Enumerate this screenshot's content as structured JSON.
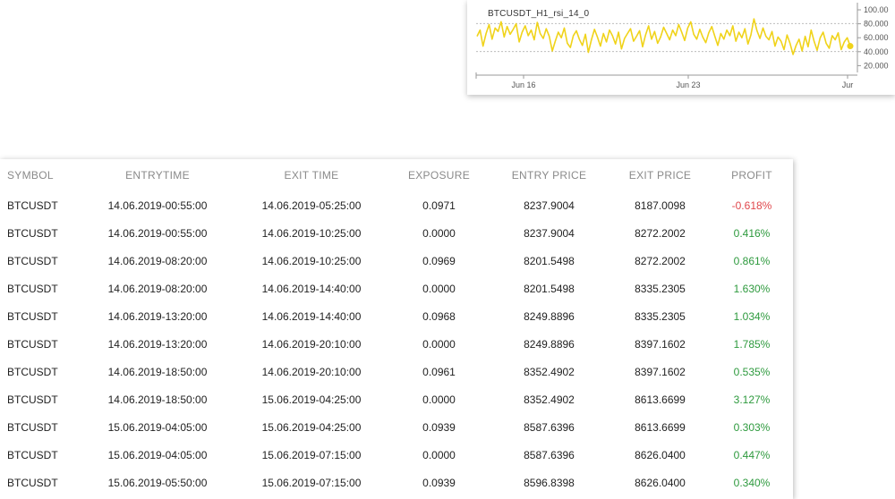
{
  "chart": {
    "title": "BTCUSDT_H1_rsi_14_0",
    "y_ticks": [
      "100.00",
      "80.000",
      "60.000",
      "40.000",
      "20.000"
    ],
    "x_ticks": [
      "Jun 16",
      "Jun 23",
      "Jur"
    ],
    "line_color": "#f0d31a",
    "chart_data": {
      "type": "line",
      "series": [
        {
          "values": [
            62,
            71,
            48,
            66,
            79,
            58,
            74,
            69,
            83,
            61,
            76,
            65,
            72,
            80,
            54,
            68,
            77,
            63,
            71,
            57,
            82,
            66,
            59,
            73,
            62,
            41,
            55,
            68,
            60,
            74,
            52,
            46,
            63,
            70,
            58,
            49,
            65,
            39,
            57,
            72,
            61,
            48,
            66,
            54,
            71,
            63,
            51,
            68,
            44,
            59,
            66,
            73,
            55,
            62,
            70,
            47,
            64,
            77,
            58,
            69,
            52,
            61,
            75,
            66,
            57,
            71,
            63,
            79,
            68,
            56,
            74,
            83,
            65,
            58,
            72,
            61,
            53,
            67,
            76,
            62,
            49,
            66,
            58,
            71,
            63,
            77,
            55,
            68,
            60,
            73,
            51,
            64,
            87,
            70,
            59,
            74,
            62,
            57,
            69,
            48,
            61,
            55,
            43,
            64,
            52,
            36,
            49,
            58,
            41,
            62,
            47,
            71,
            55,
            42,
            60,
            68,
            52,
            45,
            63,
            57,
            67,
            43,
            54,
            60,
            48
          ]
        }
      ]
    }
  },
  "table": {
    "headers": [
      "SYMBOL",
      "ENTRYTIME",
      "EXIT TIME",
      "EXPOSURE",
      "ENTRY PRICE",
      "EXIT PRICE",
      "PROFIT"
    ],
    "rows": [
      [
        "BTCUSDT",
        "14.06.2019-00:55:00",
        "14.06.2019-05:25:00",
        "0.0971",
        "8237.9004",
        "8187.0098",
        "-0.618%"
      ],
      [
        "BTCUSDT",
        "14.06.2019-00:55:00",
        "14.06.2019-10:25:00",
        "0.0000",
        "8237.9004",
        "8272.2002",
        "0.416%"
      ],
      [
        "BTCUSDT",
        "14.06.2019-08:20:00",
        "14.06.2019-10:25:00",
        "0.0969",
        "8201.5498",
        "8272.2002",
        "0.861%"
      ],
      [
        "BTCUSDT",
        "14.06.2019-08:20:00",
        "14.06.2019-14:40:00",
        "0.0000",
        "8201.5498",
        "8335.2305",
        "1.630%"
      ],
      [
        "BTCUSDT",
        "14.06.2019-13:20:00",
        "14.06.2019-14:40:00",
        "0.0968",
        "8249.8896",
        "8335.2305",
        "1.034%"
      ],
      [
        "BTCUSDT",
        "14.06.2019-13:20:00",
        "14.06.2019-20:10:00",
        "0.0000",
        "8249.8896",
        "8397.1602",
        "1.785%"
      ],
      [
        "BTCUSDT",
        "14.06.2019-18:50:00",
        "14.06.2019-20:10:00",
        "0.0961",
        "8352.4902",
        "8397.1602",
        "0.535%"
      ],
      [
        "BTCUSDT",
        "14.06.2019-18:50:00",
        "15.06.2019-04:25:00",
        "0.0000",
        "8352.4902",
        "8613.6699",
        "3.127%"
      ],
      [
        "BTCUSDT",
        "15.06.2019-04:05:00",
        "15.06.2019-04:25:00",
        "0.0939",
        "8587.6396",
        "8613.6699",
        "0.303%"
      ],
      [
        "BTCUSDT",
        "15.06.2019-04:05:00",
        "15.06.2019-07:15:00",
        "0.0000",
        "8587.6396",
        "8626.0400",
        "0.447%"
      ],
      [
        "BTCUSDT",
        "15.06.2019-05:50:00",
        "15.06.2019-07:15:00",
        "0.0939",
        "8596.8398",
        "8626.0400",
        "0.340%"
      ]
    ],
    "profit_colors": {
      "negative": "#e0474c",
      "positive": "#2e9a3e"
    }
  }
}
